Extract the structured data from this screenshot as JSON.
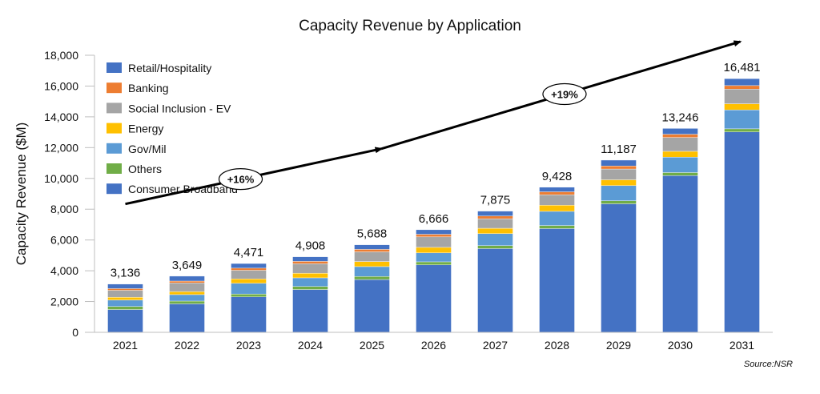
{
  "chart_data": {
    "type": "bar",
    "stacked": true,
    "title": "Capacity Revenue by Application",
    "ylabel": "Capacity Revenue ($M)",
    "xlabel": "",
    "ylim": [
      0,
      18000
    ],
    "yticks": [
      0,
      2000,
      4000,
      6000,
      8000,
      10000,
      12000,
      14000,
      16000,
      18000
    ],
    "yticks_labels": [
      "0",
      "2,000",
      "4,000",
      "6,000",
      "8,000",
      "10,000",
      "12,000",
      "14,000",
      "16,000",
      "18,000"
    ],
    "categories": [
      "2021",
      "2022",
      "2023",
      "2024",
      "2025",
      "2026",
      "2027",
      "2028",
      "2029",
      "2030",
      "2031"
    ],
    "totals": [
      3136,
      3649,
      4471,
      4908,
      5688,
      6666,
      7875,
      9428,
      11187,
      13246,
      16481
    ],
    "totals_labels": [
      "3,136",
      "3,649",
      "4,471",
      "4,908",
      "5,688",
      "6,666",
      "7,875",
      "9,428",
      "11,187",
      "13,246",
      "16,481"
    ],
    "series": [
      {
        "name": "Consumer Broadband",
        "color": "#4472C4",
        "values": [
          1480,
          1850,
          2300,
          2780,
          3430,
          4380,
          5440,
          6740,
          8350,
          10180,
          13020
        ]
      },
      {
        "name": "Others",
        "color": "#70AD47",
        "values": [
          200,
          180,
          190,
          200,
          200,
          200,
          190,
          200,
          200,
          200,
          200
        ]
      },
      {
        "name": "Gov/Mil",
        "color": "#5B9BD5",
        "values": [
          420,
          420,
          700,
          560,
          640,
          580,
          780,
          920,
          980,
          1000,
          1230
        ]
      },
      {
        "name": "Energy",
        "color": "#FFC000",
        "values": [
          180,
          200,
          280,
          300,
          330,
          360,
          350,
          400,
          380,
          380,
          400
        ]
      },
      {
        "name": "Social Inclusion - EV",
        "color": "#A5A5A5",
        "values": [
          450,
          560,
          560,
          620,
          630,
          680,
          620,
          680,
          700,
          900,
          950
        ]
      },
      {
        "name": "Banking",
        "color": "#ED7D31",
        "values": [
          110,
          120,
          140,
          150,
          160,
          170,
          180,
          190,
          200,
          210,
          230
        ]
      },
      {
        "name": "Retail/Hospitality",
        "color": "#4472C4",
        "values": [
          296,
          319,
          301,
          298,
          298,
          296,
          315,
          298,
          377,
          376,
          451
        ]
      }
    ],
    "legend": {
      "placement": "top-left",
      "entries": [
        "Retail/Hospitality",
        "Banking",
        "Social Inclusion - EV",
        "Energy",
        "Gov/Mil",
        "Others",
        "Consumer Broadband"
      ]
    },
    "annotations": [
      {
        "text": "+16%",
        "from_year": "2021",
        "to_year": "2025"
      },
      {
        "text": "+19%",
        "from_year": "2025",
        "to_year": "2031"
      }
    ],
    "source": "Source:NSR"
  }
}
